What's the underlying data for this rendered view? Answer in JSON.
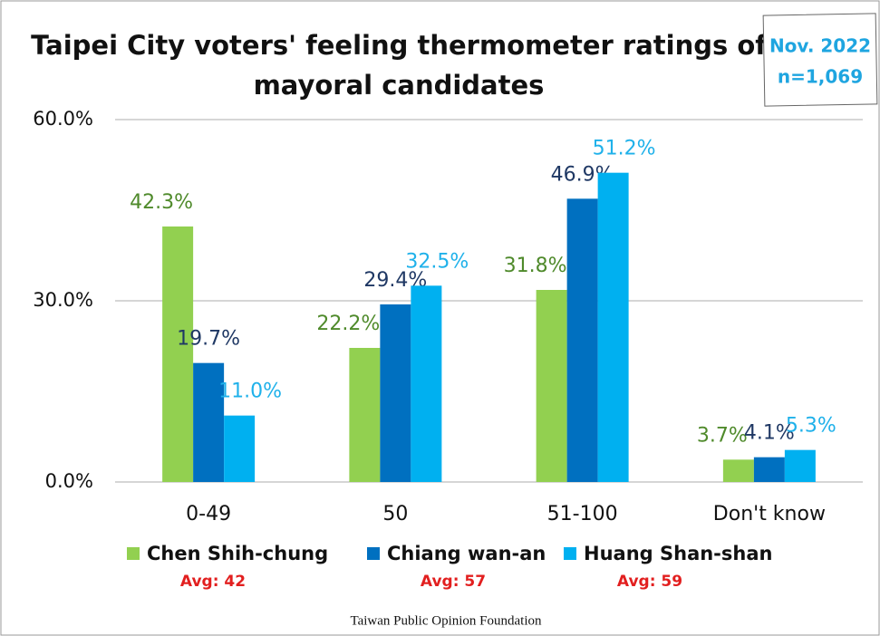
{
  "chart_data": {
    "type": "bar",
    "title": [
      "Taipei City voters' feeling thermometer ratings of",
      "mayoral candidates"
    ],
    "annotation": [
      "Nov. 2022",
      "n=1,069"
    ],
    "categories": [
      "0-49",
      "50",
      "51-100",
      "Don't know"
    ],
    "series": [
      {
        "name": "Chen Shih-chung",
        "color": "#92d050",
        "label_color": "#4f8a2b",
        "values": [
          42.3,
          22.2,
          31.8,
          3.7
        ],
        "value_labels": [
          "42.3%",
          "22.2%",
          "31.8%",
          "3.7%"
        ],
        "avg": "Avg: 42"
      },
      {
        "name": "Chiang wan-an",
        "color": "#0070c0",
        "label_color": "#1f3864",
        "values": [
          19.7,
          29.4,
          46.9,
          4.1
        ],
        "value_labels": [
          "19.7%",
          "29.4%",
          "46.9%",
          "4.1%"
        ],
        "avg": "Avg: 57"
      },
      {
        "name": "Huang Shan-shan",
        "color": "#00b0f0",
        "label_color": "#1fb1ea",
        "values": [
          11.0,
          32.5,
          51.2,
          5.3
        ],
        "value_labels": [
          "11.0%",
          "32.5%",
          "51.2%",
          "5.3%"
        ],
        "avg": "Avg: 59"
      }
    ],
    "ylim": [
      0,
      60
    ],
    "yticks": [
      {
        "value": 0,
        "label": "0.0%"
      },
      {
        "value": 30,
        "label": "30.0%"
      },
      {
        "value": 60,
        "label": "60.0%"
      }
    ],
    "grid": true,
    "source": "Taiwan Public Opinion Foundation"
  }
}
